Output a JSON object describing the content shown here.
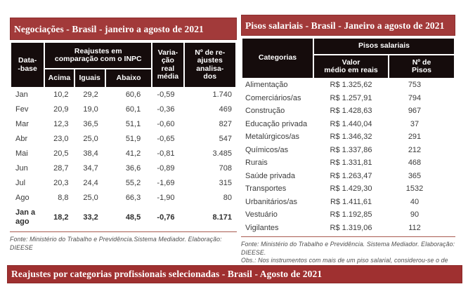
{
  "colors": {
    "title_bar_red": "#a23a3a",
    "bottom_bar_red": "#9f3030",
    "table_header_black": "#150c0c",
    "rule_red": "#a85a50"
  },
  "left_table": {
    "title": "Negociações - Brasil - janeiro a agosto de 2021",
    "header": {
      "database": "Data-\n-base",
      "group": "Reajustes em\ncomparação com o INPC",
      "acima": "Acima",
      "iguais": "Iguais",
      "abaixo": "Abaixo",
      "variacao": "Varia-\nção\nreal\nmédia",
      "num_reajustes": "Nº de re-\najustes\nanalisa-\ndos"
    },
    "rows": [
      [
        "Jan",
        "10,2",
        "29,2",
        "60,6",
        "-0,59",
        "1.740"
      ],
      [
        "Fev",
        "20,9",
        "19,0",
        "60,1",
        "-0,36",
        "469"
      ],
      [
        "Mar",
        "12,3",
        "36,5",
        "51,1",
        "-0,60",
        "827"
      ],
      [
        "Abr",
        "23,0",
        "25,0",
        "51,9",
        "-0,65",
        "547"
      ],
      [
        "Mai",
        "20,5",
        "38,4",
        "41,2",
        "-0,81",
        "3.485"
      ],
      [
        "Jun",
        "28,7",
        "34,7",
        "36,6",
        "-0,89",
        "708"
      ],
      [
        "Jul",
        "20,3",
        "24,4",
        "55,2",
        "-1,69",
        "315"
      ],
      [
        "Ago",
        "8,8",
        "25,0",
        "66,3",
        "-1,90",
        "80"
      ]
    ],
    "total_row": [
      "Jan a\nago",
      "18,2",
      "33,2",
      "48,5",
      "-0,76",
      "8.171"
    ],
    "fonte": "Fonte: Ministério do Trabalho e Previdência.Sistema Mediador. Elaboração: DIEESE"
  },
  "right_table": {
    "title": "Pisos salariais - Brasil - Janeiro a agosto de 2021",
    "header": {
      "categorias": "Categorias",
      "group": "Pisos salariais",
      "valor": "Valor\nmédio em reais",
      "num_pisos": "Nº de\nPisos"
    },
    "rows": [
      [
        "Alimentação",
        "R$ 1.325,62",
        "753"
      ],
      [
        "Comerciários/as",
        "R$ 1.257,91",
        "794"
      ],
      [
        "Construção",
        "R$ 1.428,63",
        "967"
      ],
      [
        "Educação privada",
        "R$ 1.440,04",
        "37"
      ],
      [
        "Metalúrgicos/as",
        "R$ 1.346,32",
        "291"
      ],
      [
        "Químicos/as",
        "R$ 1.337,86",
        "212"
      ],
      [
        "Rurais",
        "R$ 1.331,81",
        "468"
      ],
      [
        "Saúde privada",
        "R$ 1.263,47",
        "365"
      ],
      [
        "Transportes",
        "R$ 1.429,30",
        "1532"
      ],
      [
        "Urbanitários/as",
        "R$ 1.411,61",
        "40"
      ],
      [
        "Vestuário",
        "R$ 1.192,85",
        "90"
      ],
      [
        "Vigilantes",
        "R$ 1.319,06",
        "112"
      ]
    ],
    "fonte": "Fonte: Ministério do Trabalho e Previdência. Sistema Mediador. Elaboração: DIEESE.",
    "obs": "Obs.: Nos instrumentos com mais de um piso salarial, considerou-se o de menor valor"
  },
  "bottom_bar": {
    "title": "Reajustes por categorias profissionais selecionadas -  Brasil -  Agosto de 2021"
  }
}
